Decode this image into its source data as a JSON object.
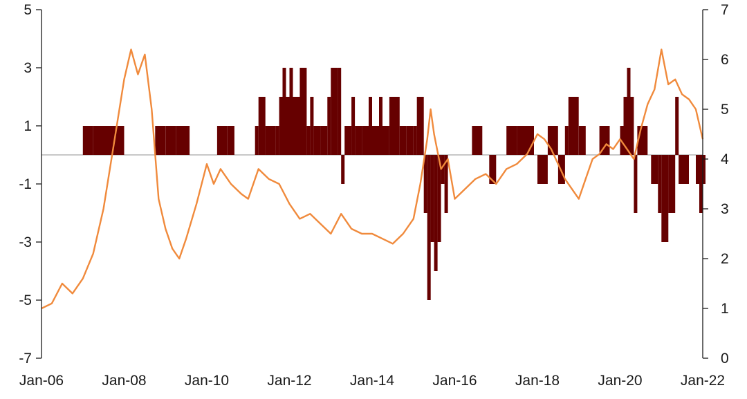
{
  "chart_data": {
    "type": "bar+line",
    "title": "",
    "x_axis": {
      "type": "date",
      "range": [
        "2006-01",
        "2022-01"
      ],
      "tick_labels": [
        "Jan-06",
        "Jan-08",
        "Jan-10",
        "Jan-12",
        "Jan-14",
        "Jan-16",
        "Jan-18",
        "Jan-20",
        "Jan-22"
      ]
    },
    "y_left": {
      "range": [
        -7,
        5
      ],
      "tick_labels": [
        "5",
        "3",
        "1",
        "-1",
        "-3",
        "-5",
        "-7"
      ]
    },
    "y_right": {
      "range": [
        0,
        7
      ],
      "tick_labels": [
        "7",
        "6",
        "5",
        "4",
        "3",
        "2",
        "1",
        "0"
      ]
    },
    "grid": false,
    "legend": "none",
    "colors": {
      "bars": "#660000",
      "line": "#f08a3c",
      "zero_line": "#c8c8c8"
    },
    "bars_axis": "left",
    "bars": [
      [
        "2007-01",
        1
      ],
      [
        "2007-04",
        1
      ],
      [
        "2008-01",
        0
      ],
      [
        "2008-10",
        1
      ],
      [
        "2009-01",
        1
      ],
      [
        "2009-04",
        1
      ],
      [
        "2009-08",
        0
      ],
      [
        "2010-04",
        1
      ],
      [
        "2010-07",
        1
      ],
      [
        "2010-09",
        0
      ],
      [
        "2011-03",
        1
      ],
      [
        "2011-04",
        2
      ],
      [
        "2011-06",
        1
      ],
      [
        "2011-09",
        1
      ],
      [
        "2011-10",
        2
      ],
      [
        "2011-11",
        3
      ],
      [
        "2011-12",
        2
      ],
      [
        "2012-01",
        3
      ],
      [
        "2012-02",
        2
      ],
      [
        "2012-04",
        3
      ],
      [
        "2012-06",
        1
      ],
      [
        "2012-07",
        2
      ],
      [
        "2012-08",
        1
      ],
      [
        "2012-10",
        1
      ],
      [
        "2012-12",
        2
      ],
      [
        "2013-01",
        3
      ],
      [
        "2013-03",
        3
      ],
      [
        "2013-04",
        -1
      ],
      [
        "2013-05",
        1
      ],
      [
        "2013-07",
        2
      ],
      [
        "2013-08",
        1
      ],
      [
        "2013-10",
        1
      ],
      [
        "2013-12",
        2
      ],
      [
        "2014-01",
        1
      ],
      [
        "2014-03",
        2
      ],
      [
        "2014-04",
        1
      ],
      [
        "2014-06",
        2
      ],
      [
        "2014-09",
        1
      ],
      [
        "2014-11",
        1
      ],
      [
        "2015-01",
        1
      ],
      [
        "2015-02",
        2
      ],
      [
        "2015-04",
        -2
      ],
      [
        "2015-05",
        -5
      ],
      [
        "2015-06",
        -3
      ],
      [
        "2015-07",
        -4
      ],
      [
        "2015-08",
        -3
      ],
      [
        "2015-09",
        -1
      ],
      [
        "2015-10",
        -2
      ],
      [
        "2015-11",
        0
      ],
      [
        "2016-06",
        1
      ],
      [
        "2016-09",
        0
      ],
      [
        "2016-11",
        -1
      ],
      [
        "2017-01",
        0
      ],
      [
        "2017-04",
        1
      ],
      [
        "2017-07",
        1
      ],
      [
        "2017-12",
        0
      ],
      [
        "2018-01",
        -1
      ],
      [
        "2018-04",
        1
      ],
      [
        "2018-07",
        -1
      ],
      [
        "2018-09",
        1
      ],
      [
        "2018-10",
        2
      ],
      [
        "2019-01",
        1
      ],
      [
        "2019-03",
        0
      ],
      [
        "2019-07",
        1
      ],
      [
        "2019-10",
        0
      ],
      [
        "2020-01",
        1
      ],
      [
        "2020-02",
        2
      ],
      [
        "2020-03",
        3
      ],
      [
        "2020-04",
        2
      ],
      [
        "2020-05",
        -2
      ],
      [
        "2020-06",
        1
      ],
      [
        "2020-09",
        0
      ],
      [
        "2020-10",
        -1
      ],
      [
        "2020-12",
        -2
      ],
      [
        "2021-01",
        -3
      ],
      [
        "2021-03",
        -2
      ],
      [
        "2021-05",
        2
      ],
      [
        "2021-06",
        -1
      ],
      [
        "2021-09",
        0
      ],
      [
        "2021-11",
        -1
      ],
      [
        "2021-12",
        -2
      ],
      [
        "2022-01",
        -1
      ]
    ],
    "line_axis": "right",
    "line": [
      [
        "2006-01",
        1.0
      ],
      [
        "2006-04",
        1.1
      ],
      [
        "2006-07",
        1.5
      ],
      [
        "2006-10",
        1.3
      ],
      [
        "2007-01",
        1.6
      ],
      [
        "2007-04",
        2.1
      ],
      [
        "2007-07",
        3.0
      ],
      [
        "2007-10",
        4.3
      ],
      [
        "2008-01",
        5.6
      ],
      [
        "2008-03",
        6.2
      ],
      [
        "2008-05",
        5.7
      ],
      [
        "2008-07",
        6.1
      ],
      [
        "2008-09",
        5.0
      ],
      [
        "2008-11",
        3.2
      ],
      [
        "2009-01",
        2.6
      ],
      [
        "2009-03",
        2.2
      ],
      [
        "2009-05",
        2.0
      ],
      [
        "2009-07",
        2.4
      ],
      [
        "2009-10",
        3.1
      ],
      [
        "2010-01",
        3.9
      ],
      [
        "2010-03",
        3.5
      ],
      [
        "2010-05",
        3.8
      ],
      [
        "2010-08",
        3.5
      ],
      [
        "2010-11",
        3.3
      ],
      [
        "2011-01",
        3.2
      ],
      [
        "2011-04",
        3.8
      ],
      [
        "2011-07",
        3.6
      ],
      [
        "2011-10",
        3.5
      ],
      [
        "2012-01",
        3.1
      ],
      [
        "2012-04",
        2.8
      ],
      [
        "2012-07",
        2.9
      ],
      [
        "2012-10",
        2.7
      ],
      [
        "2013-01",
        2.5
      ],
      [
        "2013-04",
        2.9
      ],
      [
        "2013-07",
        2.6
      ],
      [
        "2013-10",
        2.5
      ],
      [
        "2014-01",
        2.5
      ],
      [
        "2014-04",
        2.4
      ],
      [
        "2014-07",
        2.3
      ],
      [
        "2014-10",
        2.5
      ],
      [
        "2015-01",
        2.8
      ],
      [
        "2015-03",
        3.5
      ],
      [
        "2015-05",
        4.4
      ],
      [
        "2015-06",
        5.0
      ],
      [
        "2015-07",
        4.5
      ],
      [
        "2015-09",
        3.8
      ],
      [
        "2015-11",
        4.0
      ],
      [
        "2016-01",
        3.2
      ],
      [
        "2016-04",
        3.4
      ],
      [
        "2016-07",
        3.6
      ],
      [
        "2016-10",
        3.7
      ],
      [
        "2017-01",
        3.5
      ],
      [
        "2017-04",
        3.8
      ],
      [
        "2017-07",
        3.9
      ],
      [
        "2017-10",
        4.1
      ],
      [
        "2018-01",
        4.5
      ],
      [
        "2018-03",
        4.4
      ],
      [
        "2018-05",
        4.2
      ],
      [
        "2018-07",
        3.9
      ],
      [
        "2018-09",
        3.6
      ],
      [
        "2018-11",
        3.4
      ],
      [
        "2019-01",
        3.2
      ],
      [
        "2019-03",
        3.6
      ],
      [
        "2019-05",
        4.0
      ],
      [
        "2019-07",
        4.1
      ],
      [
        "2019-09",
        4.3
      ],
      [
        "2019-11",
        4.2
      ],
      [
        "2020-01",
        4.4
      ],
      [
        "2020-03",
        4.2
      ],
      [
        "2020-05",
        4.0
      ],
      [
        "2020-07",
        4.6
      ],
      [
        "2020-09",
        5.1
      ],
      [
        "2020-11",
        5.4
      ],
      [
        "2021-01",
        6.2
      ],
      [
        "2021-03",
        5.5
      ],
      [
        "2021-05",
        5.6
      ],
      [
        "2021-07",
        5.3
      ],
      [
        "2021-09",
        5.2
      ],
      [
        "2021-11",
        5.0
      ],
      [
        "2022-01",
        4.4
      ]
    ]
  }
}
